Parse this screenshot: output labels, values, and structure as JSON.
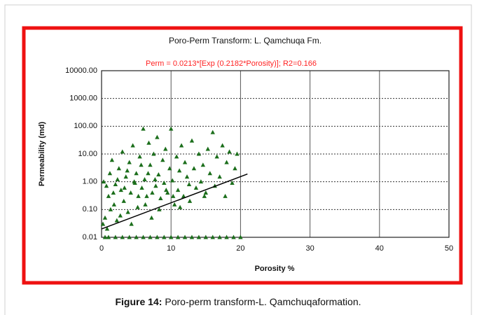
{
  "chart_data": {
    "type": "scatter",
    "title": "Poro-Perm Transform: L. Qamchuqa Fm.",
    "annotation": "Perm = 0.0213*[Exp (0.2182*Porosity)]; R2=0.166",
    "xlabel": "Porosity %",
    "ylabel": "Permeability (md)",
    "xlim": [
      0,
      50
    ],
    "xticks": [
      0,
      10,
      20,
      30,
      40,
      50
    ],
    "ylim": [
      0.01,
      10000
    ],
    "log_y": true,
    "yticks": [
      {
        "value": 10000,
        "label": "10000.00"
      },
      {
        "value": 1000,
        "label": "1000.00"
      },
      {
        "value": 100,
        "label": "100.00"
      },
      {
        "value": 10,
        "label": "10.00"
      },
      {
        "value": 1,
        "label": "1.00"
      },
      {
        "value": 0.1,
        "label": "0.10"
      },
      0.01
    ],
    "grid": true,
    "color": "#1b6e1b",
    "x": [
      0.5,
      1,
      2,
      3,
      4,
      5,
      6,
      7,
      8,
      9,
      10,
      11,
      12,
      13,
      14,
      15,
      16,
      17,
      18,
      19,
      20,
      0.3,
      0.5,
      0.8,
      1,
      1.2,
      1.5,
      1.8,
      2,
      2.2,
      2.5,
      2.8,
      3,
      3.2,
      3.5,
      3.8,
      4,
      4.2,
      4.5,
      4.8,
      5,
      5.2,
      5.5,
      5.8,
      6,
      6.2,
      6.5,
      6.8,
      7,
      7.2,
      7.5,
      7.8,
      8,
      8.2,
      8.5,
      8.8,
      9,
      9.2,
      9.5,
      9.8,
      10,
      10.2,
      10.5,
      10.8,
      11,
      11.2,
      11.5,
      11.8,
      12,
      12.3,
      12.6,
      13,
      13.3,
      13.6,
      14,
      14.3,
      14.6,
      15,
      15.3,
      15.6,
      16,
      16.3,
      16.6,
      17,
      17.4,
      17.8,
      18,
      18.4,
      18.8,
      19.2,
      0.2,
      0.7,
      1.3,
      1.7,
      2.3,
      2.7,
      3.3,
      3.7,
      4.3,
      4.7,
      5.3,
      5.7,
      6.3,
      6.7,
      7.3,
      7.7,
      8.3,
      9.3,
      10.3,
      11.3,
      12.7,
      14.8,
      19.5
    ],
    "values": [
      0.01,
      0.01,
      0.01,
      0.01,
      0.01,
      0.01,
      0.01,
      0.01,
      0.01,
      0.01,
      0.01,
      0.01,
      0.01,
      0.01,
      0.01,
      0.01,
      0.01,
      0.01,
      0.01,
      0.01,
      0.01,
      1.0,
      0.05,
      0.02,
      0.3,
      2,
      6,
      0.15,
      0.8,
      0.04,
      3,
      0.5,
      12,
      0.2,
      1.5,
      0.08,
      5,
      0.4,
      20,
      0.9,
      2,
      0.12,
      8,
      0.6,
      80,
      1.2,
      0.3,
      25,
      4,
      0.05,
      10,
      0.7,
      40,
      1.8,
      0.25,
      6,
      0.9,
      15,
      0.4,
      3,
      80,
      1.1,
      0.15,
      8,
      0.5,
      2.5,
      20,
      0.3,
      5,
      1.5,
      0.8,
      30,
      3,
      0.6,
      10,
      1,
      4,
      0.4,
      15,
      2,
      60,
      0.7,
      8,
      1.5,
      20,
      0.3,
      5,
      12,
      0.9,
      3,
      0.03,
      0.7,
      0.1,
      0.4,
      1.2,
      0.06,
      0.6,
      2.5,
      0.03,
      1,
      0.3,
      4,
      0.15,
      2,
      0.4,
      1.2,
      0.1,
      0.5,
      0.3,
      0.12,
      0.2,
      0.3,
      10
    ],
    "trendline": {
      "x": [
        0,
        21
      ],
      "values": [
        0.02,
        1.9
      ],
      "color": "#000000"
    }
  },
  "caption": {
    "label": "Figure 14:",
    "text": "Poro-perm transform-L. Qamchuqaformation."
  }
}
